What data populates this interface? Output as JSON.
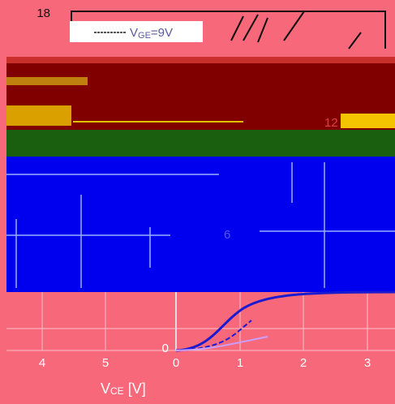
{
  "axis": {
    "y_ticks": [
      "18",
      "12",
      "6",
      "0"
    ],
    "x_ticks_left": [
      "4",
      "5"
    ],
    "x_ticks": [
      "0",
      "1",
      "2",
      "3"
    ],
    "x_label": {
      "symbol": "V",
      "subscript": "CE",
      "rest": " [V]"
    }
  },
  "legend": {
    "symbol": "V",
    "subscript": "GE",
    "rest": "=9V"
  }
}
